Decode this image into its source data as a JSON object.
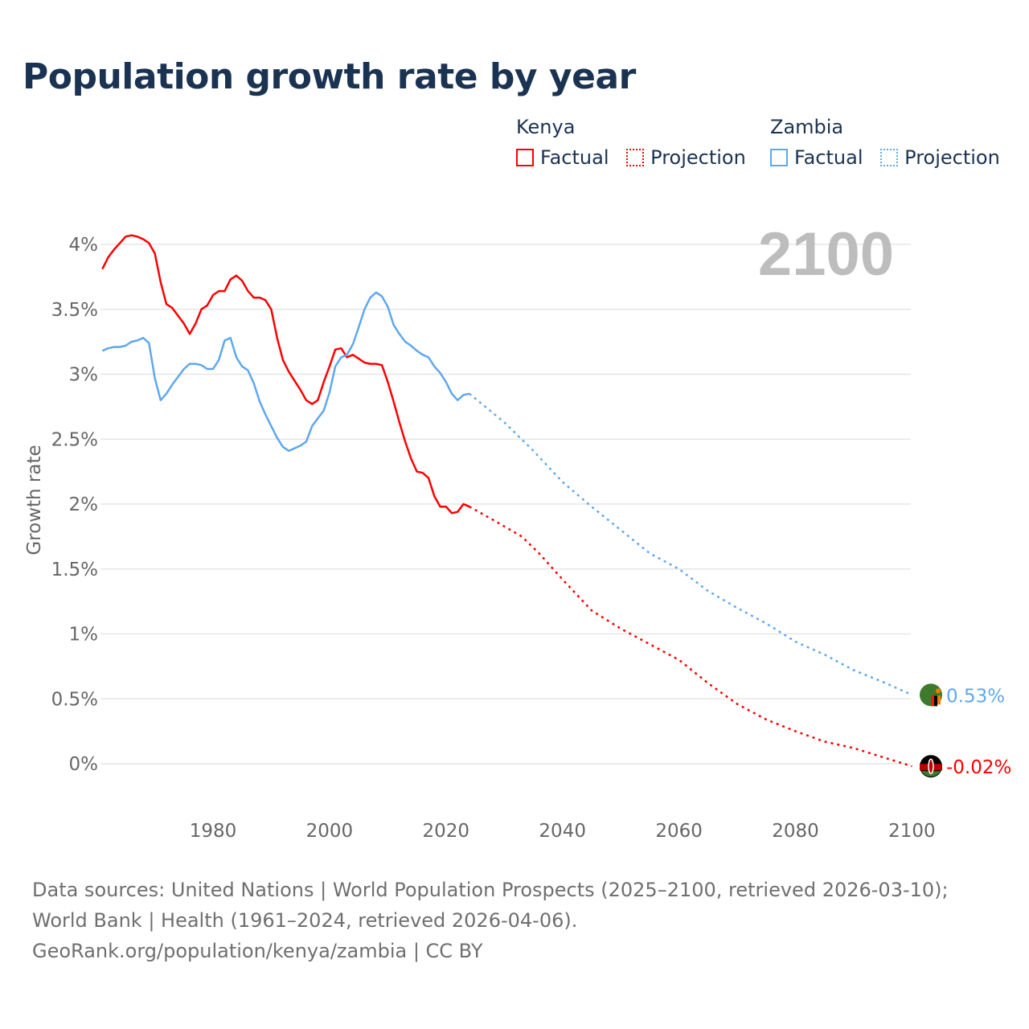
{
  "title": "Population growth rate by year",
  "legend": {
    "groups": [
      {
        "name": "Kenya",
        "color": "#ff0000",
        "factual": "Factual",
        "projection": "Projection"
      },
      {
        "name": "Zambia",
        "color": "#5ea8ee",
        "factual": "Factual",
        "projection": "Projection"
      }
    ]
  },
  "current_year_label": "2100",
  "footer": {
    "sources": "Data sources: United Nations | World Population Prospects (2025–2100, retrieved 2026-03-10); World Bank | Health (1961–2024, retrieved 2026-04-06).",
    "credit": "GeoRank.org/population/kenya/zambia | CC BY"
  },
  "chart_data": {
    "type": "line",
    "title": "Population growth rate by year",
    "xlabel": "",
    "ylabel": "Growth rate",
    "xlim": [
      1961,
      2100
    ],
    "ylim": [
      -0.3,
      4.2
    ],
    "x_ticks": [
      1980,
      2000,
      2020,
      2040,
      2060,
      2080,
      2100
    ],
    "x_tick_labels": [
      "1980",
      "2000",
      "2020",
      "2040",
      "2060",
      "2080",
      "2100"
    ],
    "y_ticks": [
      0,
      0.5,
      1,
      1.5,
      2,
      2.5,
      3,
      3.5,
      4
    ],
    "y_tick_labels": [
      "0%",
      "0.5%",
      "1%",
      "1.5%",
      "2%",
      "2.5%",
      "3%",
      "3.5%",
      "4%"
    ],
    "grid": true,
    "legend_position": "top-right",
    "series": [
      {
        "name": "Kenya",
        "color": "#ff0000",
        "end_label": "-0.02%",
        "factual": {
          "x": [
            1961,
            1962,
            1963,
            1964,
            1965,
            1966,
            1967,
            1968,
            1969,
            1970,
            1971,
            1972,
            1973,
            1974,
            1975,
            1976,
            1977,
            1978,
            1979,
            1980,
            1981,
            1982,
            1983,
            1984,
            1985,
            1986,
            1987,
            1988,
            1989,
            1990,
            1991,
            1992,
            1993,
            1994,
            1995,
            1996,
            1997,
            1998,
            1999,
            2000,
            2001,
            2002,
            2003,
            2004,
            2005,
            2006,
            2007,
            2008,
            2009,
            2010,
            2011,
            2012,
            2013,
            2014,
            2015,
            2016,
            2017,
            2018,
            2019,
            2020,
            2021,
            2022,
            2023,
            2024
          ],
          "y": [
            3.81,
            3.9,
            3.96,
            4.01,
            4.06,
            4.07,
            4.06,
            4.04,
            4.01,
            3.93,
            3.71,
            3.54,
            3.51,
            3.45,
            3.39,
            3.31,
            3.39,
            3.5,
            3.53,
            3.61,
            3.64,
            3.64,
            3.73,
            3.76,
            3.72,
            3.64,
            3.59,
            3.59,
            3.57,
            3.5,
            3.28,
            3.11,
            3.02,
            2.95,
            2.88,
            2.8,
            2.77,
            2.8,
            2.94,
            3.06,
            3.19,
            3.2,
            3.13,
            3.15,
            3.12,
            3.09,
            3.08,
            3.08,
            3.07,
            2.94,
            2.79,
            2.63,
            2.48,
            2.35,
            2.25,
            2.24,
            2.2,
            2.06,
            1.98,
            1.98,
            1.93,
            1.94,
            2.0,
            1.98
          ]
        },
        "projection": {
          "x": [
            2024,
            2028,
            2033,
            2036,
            2040,
            2045,
            2050,
            2055,
            2060,
            2065,
            2070,
            2075,
            2080,
            2085,
            2090,
            2095,
            2100
          ],
          "y": [
            1.98,
            1.88,
            1.75,
            1.62,
            1.42,
            1.18,
            1.04,
            0.92,
            0.8,
            0.62,
            0.46,
            0.34,
            0.25,
            0.17,
            0.12,
            0.05,
            -0.02
          ]
        }
      },
      {
        "name": "Zambia",
        "color": "#5ea8ee",
        "end_label": "0.53%",
        "factual": {
          "x": [
            1961,
            1962,
            1963,
            1964,
            1965,
            1966,
            1967,
            1968,
            1969,
            1970,
            1971,
            1972,
            1973,
            1974,
            1975,
            1976,
            1977,
            1978,
            1979,
            1980,
            1981,
            1982,
            1983,
            1984,
            1985,
            1986,
            1987,
            1988,
            1989,
            1990,
            1991,
            1992,
            1993,
            1994,
            1995,
            1996,
            1997,
            1998,
            1999,
            2000,
            2001,
            2002,
            2003,
            2004,
            2005,
            2006,
            2007,
            2008,
            2009,
            2010,
            2011,
            2012,
            2013,
            2014,
            2015,
            2016,
            2017,
            2018,
            2019,
            2020,
            2021,
            2022,
            2023,
            2024
          ],
          "y": [
            3.18,
            3.2,
            3.21,
            3.21,
            3.22,
            3.25,
            3.26,
            3.28,
            3.24,
            2.97,
            2.8,
            2.85,
            2.92,
            2.98,
            3.04,
            3.08,
            3.08,
            3.07,
            3.04,
            3.04,
            3.11,
            3.26,
            3.28,
            3.13,
            3.06,
            3.03,
            2.93,
            2.79,
            2.69,
            2.6,
            2.51,
            2.44,
            2.41,
            2.43,
            2.45,
            2.48,
            2.6,
            2.66,
            2.72,
            2.86,
            3.06,
            3.13,
            3.15,
            3.23,
            3.36,
            3.5,
            3.59,
            3.63,
            3.6,
            3.52,
            3.38,
            3.31,
            3.25,
            3.22,
            3.18,
            3.15,
            3.13,
            3.06,
            3.01,
            2.94,
            2.85,
            2.8,
            2.84,
            2.85
          ]
        },
        "projection": {
          "x": [
            2024,
            2030,
            2035,
            2040,
            2045,
            2050,
            2055,
            2060,
            2065,
            2070,
            2075,
            2080,
            2085,
            2090,
            2095,
            2100
          ],
          "y": [
            2.85,
            2.63,
            2.41,
            2.17,
            1.98,
            1.8,
            1.62,
            1.5,
            1.33,
            1.2,
            1.08,
            0.94,
            0.84,
            0.72,
            0.63,
            0.53
          ]
        }
      }
    ]
  }
}
